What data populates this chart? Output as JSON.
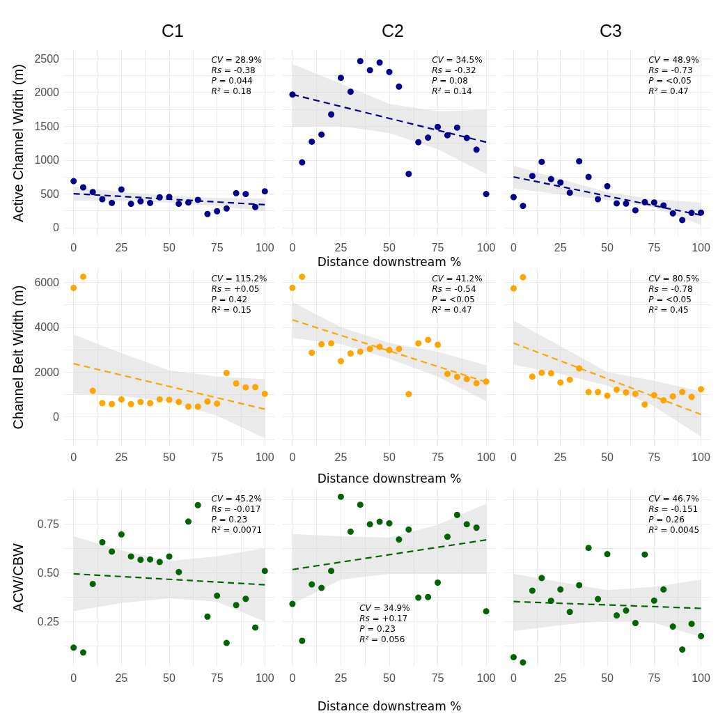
{
  "chart_data": [
    {
      "type": "scatter",
      "title": "C1",
      "ylabel": "Active Channel Width (m)",
      "x": [
        0,
        5,
        10,
        15,
        20,
        25,
        30,
        35,
        40,
        45,
        50,
        55,
        60,
        65,
        70,
        75,
        80,
        85,
        90,
        95,
        100
      ],
      "xlim": [
        -5,
        105
      ],
      "xticks": [
        0,
        {
          "value": 12.5,
          "label": null
        },
        25,
        {
          "value": 37.5,
          "label": null
        },
        50,
        {
          "value": 62.5,
          "label": null
        },
        75,
        {
          "value": 87.5,
          "label": null
        },
        100
      ],
      "ylim": [
        -125,
        2625
      ],
      "yticks": [
        0,
        {
          "value": 250,
          "label": null
        },
        500,
        {
          "value": 750,
          "label": null
        },
        1000,
        {
          "value": 1250,
          "label": null
        },
        1500,
        {
          "value": 1750,
          "label": null
        },
        2000,
        {
          "value": 2250,
          "label": null
        },
        2500
      ],
      "grid": true,
      "marker": "circle",
      "line_style": "dashed",
      "annotations": [
        "CV = 28.9%",
        "Rs = -0.38",
        "P = 0.044",
        "R² = 0.18"
      ],
      "series": [
        {
          "color": "#00008b",
          "values": [
            688,
            596,
            527,
            421,
            366,
            565,
            353,
            390,
            366,
            449,
            455,
            353,
            373,
            411,
            202,
            243,
            284,
            510,
            497,
            305,
            538
          ]
        },
        {
          "type": "line",
          "marker": "none",
          "color": "#00008b",
          "x": [
            0,
            25,
            50,
            75,
            100
          ],
          "values": [
            503,
            462,
            421,
            380,
            339
          ],
          "lower": [
            400,
            395,
            370,
            320,
            247
          ],
          "upper": [
            600,
            530,
            470,
            440,
            435
          ]
        }
      ]
    },
    {
      "type": "scatter",
      "title": "C2",
      "xlabel": "Distance downstream %",
      "tick_labels": "x",
      "x": [
        0,
        5,
        10,
        15,
        20,
        25,
        30,
        35,
        40,
        45,
        50,
        55,
        60,
        65,
        70,
        75,
        80,
        85,
        90,
        95,
        100
      ],
      "xlim": [
        -5,
        105
      ],
      "xticks": [
        0,
        {
          "value": 12.5,
          "label": null
        },
        25,
        {
          "value": 37.5,
          "label": null
        },
        50,
        {
          "value": 62.5,
          "label": null
        },
        75,
        {
          "value": 87.5,
          "label": null
        },
        100
      ],
      "ylim": [
        -125,
        2625
      ],
      "yticks": [
        0,
        {
          "value": 250,
          "label": null
        },
        500,
        {
          "value": 750,
          "label": null
        },
        1000,
        {
          "value": 1250,
          "label": null
        },
        1500,
        {
          "value": 1750,
          "label": null
        },
        2000,
        {
          "value": 2250,
          "label": null
        },
        2500
      ],
      "grid": true,
      "marker": "circle",
      "line_style": "dashed",
      "annotations": [
        "CV = 34.5%",
        "Rs = -0.32",
        "P = 0.08",
        "R² = 0.14"
      ],
      "series": [
        {
          "color": "#00008b",
          "values": [
            1969,
            966,
            1271,
            1377,
            1675,
            2216,
            2010,
            2463,
            2329,
            2442,
            2302,
            2086,
            795,
            1264,
            1332,
            1490,
            1367,
            1480,
            1326,
            1154,
            497
          ]
        },
        {
          "type": "line",
          "marker": "none",
          "color": "#00008b",
          "x": [
            0,
            25,
            50,
            75,
            100
          ],
          "values": [
            1969,
            1792,
            1616,
            1440,
            1264
          ],
          "lower": [
            1497,
            1500,
            1400,
            1160,
            795
          ],
          "upper": [
            2418,
            2130,
            1830,
            1720,
            1743
          ]
        }
      ]
    },
    {
      "type": "scatter",
      "title": "C3",
      "tick_labels": "x",
      "x": [
        0,
        5,
        10,
        15,
        20,
        25,
        30,
        35,
        40,
        45,
        50,
        55,
        60,
        65,
        70,
        75,
        80,
        85,
        90,
        95,
        100
      ],
      "xlim": [
        -5,
        105
      ],
      "xticks": [
        0,
        {
          "value": 12.5,
          "label": null
        },
        25,
        {
          "value": 37.5,
          "label": null
        },
        50,
        {
          "value": 62.5,
          "label": null
        },
        75,
        {
          "value": 87.5,
          "label": null
        },
        100
      ],
      "ylim": [
        -125,
        2625
      ],
      "yticks": [
        0,
        {
          "value": 250,
          "label": null
        },
        500,
        {
          "value": 750,
          "label": null
        },
        1000,
        {
          "value": 1250,
          "label": null
        },
        1500,
        {
          "value": 1750,
          "label": null
        },
        2000,
        {
          "value": 2250,
          "label": null
        },
        2500
      ],
      "grid": true,
      "marker": "circle",
      "line_style": "dashed",
      "annotations": [
        "CV = 48.9%",
        "Rs = -0.73",
        "P = <0.05",
        "R² = 0.47"
      ],
      "series": [
        {
          "color": "#00008b",
          "values": [
            452,
            322,
            764,
            973,
            719,
            668,
            517,
            983,
            750,
            421,
            613,
            360,
            356,
            257,
            377,
            373,
            329,
            212,
            113,
            219,
            223
          ]
        },
        {
          "type": "line",
          "marker": "none",
          "color": "#00008b",
          "x": [
            0,
            25,
            50,
            75,
            100
          ],
          "values": [
            750,
            609,
            467,
            326,
            185
          ],
          "lower": [
            579,
            490,
            410,
            300,
            41
          ],
          "upper": [
            914,
            720,
            525,
            420,
            373
          ]
        }
      ]
    },
    {
      "type": "scatter",
      "ylabel": "Channel Belt Width (m)",
      "x": [
        0,
        5,
        10,
        15,
        20,
        25,
        30,
        35,
        40,
        45,
        50,
        55,
        60,
        65,
        70,
        75,
        80,
        85,
        90,
        95,
        100
      ],
      "xlim": [
        -5,
        105
      ],
      "xticks": [
        0,
        {
          "value": 12.5,
          "label": null
        },
        25,
        {
          "value": 37.5,
          "label": null
        },
        50,
        {
          "value": 62.5,
          "label": null
        },
        75,
        {
          "value": 87.5,
          "label": null
        },
        100
      ],
      "ylim": [
        -1280,
        6600
      ],
      "yticks": [
        {
          "value": -1000,
          "label": null
        },
        0,
        {
          "value": 1000,
          "label": null
        },
        2000,
        {
          "value": 3000,
          "label": null
        },
        4000,
        {
          "value": 5000,
          "label": null
        },
        6000
      ],
      "grid": true,
      "marker": "circle",
      "line_style": "dashed",
      "annotations": [
        "CV = 115.2%",
        "Rs = +0.05",
        "P = 0.42",
        "R² = 0.15"
      ],
      "series": [
        {
          "color": "#ffa500",
          "values": [
            5752,
            6248,
            1167,
            620,
            578,
            785,
            578,
            671,
            620,
            785,
            764,
            671,
            465,
            465,
            692,
            599,
            1962,
            1497,
            1322,
            1332,
            1033
          ]
        },
        {
          "type": "line",
          "marker": "none",
          "color": "#ffa500",
          "x": [
            0,
            25,
            50,
            75,
            100
          ],
          "values": [
            2375,
            1869,
            1363,
            857,
            351
          ],
          "lower": [
            1043,
            940,
            682,
            62,
            -950
          ],
          "upper": [
            3676,
            2850,
            2076,
            1797,
            1694
          ]
        }
      ]
    },
    {
      "type": "scatter",
      "xlabel": "Distance downstream %",
      "tick_labels": "x",
      "x": [
        0,
        5,
        10,
        15,
        20,
        25,
        30,
        35,
        40,
        45,
        50,
        55,
        60,
        65,
        70,
        75,
        80,
        85,
        90,
        95,
        100
      ],
      "xlim": [
        -5,
        105
      ],
      "xticks": [
        0,
        {
          "value": 12.5,
          "label": null
        },
        25,
        {
          "value": 37.5,
          "label": null
        },
        50,
        {
          "value": 62.5,
          "label": null
        },
        75,
        {
          "value": 87.5,
          "label": null
        },
        100
      ],
      "ylim": [
        -1280,
        6600
      ],
      "yticks": [
        {
          "value": -1000,
          "label": null
        },
        0,
        {
          "value": 1000,
          "label": null
        },
        2000,
        {
          "value": 3000,
          "label": null
        },
        4000,
        {
          "value": 5000,
          "label": null
        },
        6000
      ],
      "grid": true,
      "marker": "circle",
      "line_style": "dashed",
      "annotations": [
        "CV = 41.2%",
        "Rs = -0.54",
        "P = <0.05",
        "R² = 0.47"
      ],
      "series": [
        {
          "color": "#ffa500",
          "values": [
            5752,
            6248,
            2861,
            3243,
            3284,
            2489,
            2830,
            2912,
            3036,
            3129,
            2985,
            3036,
            1022,
            3284,
            3439,
            3222,
            1921,
            1787,
            1694,
            1508,
            1580
          ]
        },
        {
          "type": "line",
          "marker": "none",
          "color": "#ffa500",
          "x": [
            0,
            25,
            50,
            75,
            100
          ],
          "values": [
            4327,
            3635,
            2943,
            2251,
            1559
          ],
          "lower": [
            3521,
            3250,
            2600,
            1800,
            702
          ],
          "upper": [
            5122,
            4000,
            3300,
            2900,
            2313
          ]
        }
      ]
    },
    {
      "type": "scatter",
      "tick_labels": "x",
      "x": [
        0,
        5,
        10,
        15,
        20,
        25,
        30,
        35,
        40,
        45,
        50,
        55,
        60,
        65,
        70,
        75,
        80,
        85,
        90,
        95,
        100
      ],
      "xlim": [
        -5,
        105
      ],
      "xticks": [
        0,
        {
          "value": 12.5,
          "label": null
        },
        25,
        {
          "value": 37.5,
          "label": null
        },
        50,
        {
          "value": 62.5,
          "label": null
        },
        75,
        {
          "value": 87.5,
          "label": null
        },
        100
      ],
      "ylim": [
        -1280,
        6600
      ],
      "yticks": [
        {
          "value": -1000,
          "label": null
        },
        0,
        {
          "value": 1000,
          "label": null
        },
        2000,
        {
          "value": 3000,
          "label": null
        },
        4000,
        {
          "value": 5000,
          "label": null
        },
        6000
      ],
      "grid": true,
      "marker": "circle",
      "line_style": "dashed",
      "annotations": [
        "CV = 80.5%",
        "Rs = -0.78",
        "P = <0.05",
        "R² = 0.45"
      ],
      "series": [
        {
          "color": "#ffa500",
          "values": [
            5731,
            6227,
            1797,
            1972,
            1952,
            1539,
            1663,
            2169,
            1115,
            1115,
            950,
            1219,
            1095,
            1033,
            558,
            971,
            744,
            919,
            1115,
            898,
            1239
          ]
        },
        {
          "type": "line",
          "marker": "none",
          "color": "#ffa500",
          "x": [
            0,
            25,
            50,
            75,
            100
          ],
          "values": [
            3294,
            2499,
            1704,
            909,
            114
          ],
          "lower": [
            2334,
            1921,
            1400,
            475,
            -867
          ],
          "upper": [
            4296,
            3160,
            2000,
            1611,
            1146
          ]
        }
      ]
    },
    {
      "type": "scatter",
      "ylabel": "ACW/CBW",
      "x": [
        0,
        5,
        10,
        15,
        20,
        25,
        30,
        35,
        40,
        45,
        50,
        55,
        60,
        65,
        70,
        75,
        80,
        85,
        90,
        95,
        100
      ],
      "xlim": [
        -5,
        105
      ],
      "xticks": [
        0,
        {
          "value": 12.5,
          "label": null
        },
        25,
        {
          "value": 37.5,
          "label": null
        },
        50,
        {
          "value": 62.5,
          "label": null
        },
        75,
        {
          "value": 87.5,
          "label": null
        },
        100
      ],
      "ylim": [
        0.02,
        0.93
      ],
      "yticks": [
        {
          "value": 0.125,
          "label": null
        },
        {
          "value": 0.25,
          "label": "0.25"
        },
        {
          "value": 0.375,
          "label": null
        },
        {
          "value": 0.5,
          "label": "0.50"
        },
        {
          "value": 0.625,
          "label": null
        },
        {
          "value": 0.75,
          "label": "0.75"
        },
        {
          "value": 0.875,
          "label": null
        }
      ],
      "grid": true,
      "marker": "circle",
      "line_style": "dashed",
      "annotations": [
        "CV = 45.2%",
        "Rs = -0.017",
        "P = 0.23",
        "R² = 0.0071"
      ],
      "series": [
        {
          "color": "#006400",
          "values": [
            0.117,
            0.092,
            0.443,
            0.657,
            0.609,
            0.697,
            0.584,
            0.567,
            0.569,
            0.556,
            0.584,
            0.504,
            0.763,
            0.847,
            0.276,
            0.383,
            0.141,
            0.335,
            0.367,
            0.22,
            0.51
          ]
        },
        {
          "type": "line",
          "marker": "none",
          "color": "#006400",
          "x": [
            0,
            25,
            50,
            75,
            100
          ],
          "values": [
            0.495,
            0.481,
            0.467,
            0.453,
            0.439
          ],
          "lower": [
            0.304,
            0.346,
            0.37,
            0.352,
            0.25
          ],
          "upper": [
            0.687,
            0.615,
            0.561,
            0.585,
            0.627
          ]
        }
      ]
    },
    {
      "type": "scatter",
      "xlabel": "Distance downstream %",
      "tick_labels": "x",
      "x": [
        0,
        5,
        10,
        15,
        20,
        25,
        30,
        35,
        40,
        45,
        50,
        55,
        60,
        65,
        70,
        75,
        80,
        85,
        90,
        95,
        100
      ],
      "xlim": [
        -5,
        105
      ],
      "xticks": [
        0,
        {
          "value": 12.5,
          "label": null
        },
        25,
        {
          "value": 37.5,
          "label": null
        },
        50,
        {
          "value": 62.5,
          "label": null
        },
        75,
        {
          "value": 87.5,
          "label": null
        },
        100
      ],
      "ylim": [
        0.02,
        0.93
      ],
      "yticks": [
        {
          "value": 0.125,
          "label": null
        },
        0.25,
        {
          "value": 0.375,
          "label": null
        },
        0.5,
        {
          "value": 0.625,
          "label": null
        },
        0.75,
        {
          "value": 0.875,
          "label": null
        }
      ],
      "grid": true,
      "marker": "circle",
      "line_style": "dashed",
      "annotations": [
        "CV = 34.9%",
        "Rs = +0.17",
        "P = 0.23",
        "R² = 0.056"
      ],
      "series": [
        {
          "color": "#006400",
          "values": [
            0.341,
            0.152,
            0.441,
            0.423,
            0.51,
            0.89,
            0.711,
            0.849,
            0.749,
            0.762,
            0.754,
            0.671,
            0.722,
            0.373,
            0.376,
            0.45,
            0.685,
            0.797,
            0.749,
            0.732,
            0.303
          ]
        },
        {
          "type": "line",
          "marker": "none",
          "color": "#006400",
          "x": [
            0,
            25,
            50,
            75,
            100
          ],
          "values": [
            0.517,
            0.555,
            0.593,
            0.631,
            0.669
          ],
          "lower": [
            0.34,
            0.465,
            0.495,
            0.495,
            0.495
          ],
          "upper": [
            0.699,
            0.687,
            0.681,
            0.746,
            0.854
          ]
        }
      ]
    },
    {
      "type": "scatter",
      "tick_labels": "x",
      "x": [
        0,
        5,
        10,
        15,
        20,
        25,
        30,
        35,
        40,
        45,
        50,
        55,
        60,
        65,
        70,
        75,
        80,
        85,
        90,
        95,
        100
      ],
      "xlim": [
        -5,
        105
      ],
      "xticks": [
        0,
        {
          "value": 12.5,
          "label": null
        },
        25,
        {
          "value": 37.5,
          "label": null
        },
        50,
        {
          "value": 62.5,
          "label": null
        },
        75,
        {
          "value": 87.5,
          "label": null
        },
        100
      ],
      "ylim": [
        0.02,
        0.93
      ],
      "yticks": [
        {
          "value": 0.125,
          "label": null
        },
        0.25,
        {
          "value": 0.375,
          "label": null
        },
        0.5,
        {
          "value": 0.625,
          "label": null
        },
        0.75,
        {
          "value": 0.875,
          "label": null
        }
      ],
      "grid": true,
      "marker": "circle",
      "line_style": "dashed",
      "annotations": [
        "CV = 46.7%",
        "Rs = -0.151",
        "P = 0.26",
        "R² = 0.0045"
      ],
      "series": [
        {
          "color": "#006400",
          "values": [
            0.068,
            0.041,
            0.409,
            0.474,
            0.357,
            0.415,
            0.3,
            0.437,
            0.628,
            0.366,
            0.596,
            0.282,
            0.307,
            0.243,
            0.594,
            0.358,
            0.415,
            0.225,
            0.107,
            0.239,
            0.176
          ]
        },
        {
          "type": "line",
          "marker": "none",
          "color": "#006400",
          "x": [
            0,
            25,
            50,
            75,
            100
          ],
          "values": [
            0.353,
            0.344,
            0.336,
            0.327,
            0.318
          ],
          "lower": [
            0.202,
            0.232,
            0.256,
            0.244,
            0.172
          ],
          "upper": [
            0.495,
            0.453,
            0.412,
            0.429,
            0.465
          ]
        }
      ]
    }
  ]
}
